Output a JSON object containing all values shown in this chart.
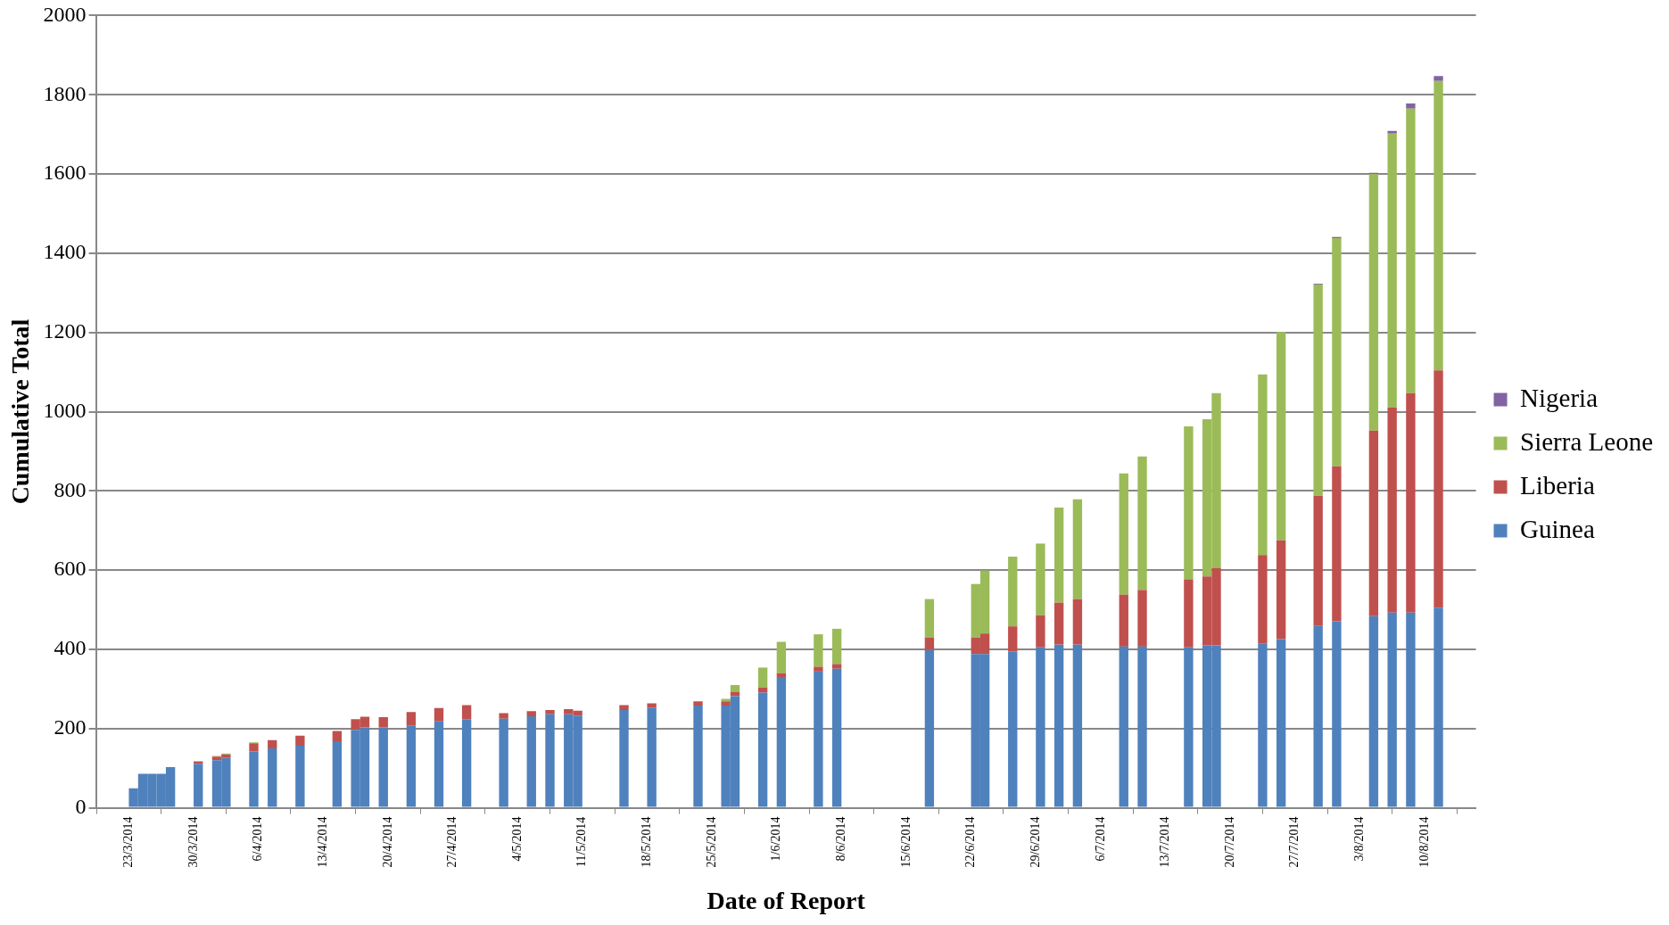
{
  "chart_data": {
    "type": "bar",
    "stacked": true,
    "xlabel": "Date of Report",
    "ylabel": "Cumulative Total",
    "x": [
      "2014-03-23",
      "2014-03-24",
      "2014-03-25",
      "2014-03-26",
      "2014-03-27",
      "2014-03-30",
      "2014-04-01",
      "2014-04-02",
      "2014-04-05",
      "2014-04-07",
      "2014-04-10",
      "2014-04-14",
      "2014-04-16",
      "2014-04-17",
      "2014-04-19",
      "2014-04-22",
      "2014-04-25",
      "2014-04-28",
      "2014-05-02",
      "2014-05-05",
      "2014-05-07",
      "2014-05-09",
      "2014-05-10",
      "2014-05-15",
      "2014-05-18",
      "2014-05-23",
      "2014-05-26",
      "2014-05-27",
      "2014-05-30",
      "2014-06-01",
      "2014-06-05",
      "2014-06-07",
      "2014-06-17",
      "2014-06-22",
      "2014-06-23",
      "2014-06-26",
      "2014-06-29",
      "2014-07-01",
      "2014-07-03",
      "2014-07-08",
      "2014-07-10",
      "2014-07-15",
      "2014-07-17",
      "2014-07-18",
      "2014-07-23",
      "2014-07-25",
      "2014-07-29",
      "2014-07-31",
      "2014-08-04",
      "2014-08-06",
      "2014-08-08",
      "2014-08-11"
    ],
    "series": [
      {
        "name": "Guinea",
        "color": "#4f81bd",
        "values": [
          49,
          86,
          86,
          86,
          103,
          111,
          120,
          126,
          142,
          150,
          157,
          168,
          197,
          203,
          203,
          208,
          218,
          224,
          225,
          231,
          236,
          236,
          233,
          247,
          253,
          258,
          258,
          282,
          291,
          328,
          344,
          351,
          398,
          388,
          388,
          395,
          405,
          412,
          412,
          407,
          407,
          405,
          410,
          410,
          414,
          426,
          459,
          471,
          484,
          493,
          493,
          505
        ]
      },
      {
        "name": "Liberia",
        "color": "#c0504d",
        "values": [
          null,
          null,
          null,
          null,
          null,
          5,
          9,
          9,
          21,
          21,
          25,
          26,
          27,
          27,
          26,
          34,
          34,
          35,
          14,
          13,
          11,
          13,
          12,
          12,
          11,
          11,
          11,
          11,
          12,
          12,
          12,
          12,
          32,
          42,
          52,
          63,
          81,
          106,
          115,
          131,
          143,
          172,
          174,
          195,
          224,
          249,
          329,
          391,
          468,
          517,
          554,
          599
        ]
      },
      {
        "name": "Sierra Leone",
        "color": "#9bbb59",
        "values": [
          null,
          null,
          null,
          null,
          null,
          2,
          2,
          2,
          2,
          null,
          null,
          null,
          null,
          null,
          null,
          null,
          null,
          null,
          null,
          null,
          null,
          null,
          null,
          null,
          null,
          null,
          6,
          17,
          51,
          79,
          82,
          89,
          97,
          135,
          159,
          176,
          181,
          240,
          252,
          306,
          337,
          386,
          397,
          442,
          456,
          526,
          533,
          576,
          648,
          692,
          718,
          731
        ]
      },
      {
        "name": "Nigeria",
        "color": "#8064a2",
        "values": [
          null,
          null,
          null,
          null,
          null,
          null,
          null,
          null,
          null,
          null,
          null,
          null,
          null,
          null,
          null,
          null,
          null,
          null,
          null,
          null,
          null,
          null,
          null,
          null,
          null,
          null,
          null,
          null,
          null,
          null,
          null,
          null,
          null,
          null,
          null,
          null,
          null,
          null,
          null,
          null,
          null,
          null,
          null,
          null,
          null,
          null,
          2,
          3,
          3,
          7,
          13,
          12
        ]
      }
    ],
    "xlim": [
      "2014-03-23",
      "2014-08-12"
    ],
    "xticks": [
      {
        "value": "2014-03-23",
        "label": "23/3/2014"
      },
      {
        "value": "2014-03-30",
        "label": "30/3/2014"
      },
      {
        "value": "2014-04-06",
        "label": "6/4/2014"
      },
      {
        "value": "2014-04-13",
        "label": "13/4/2014"
      },
      {
        "value": "2014-04-20",
        "label": "20/4/2014"
      },
      {
        "value": "2014-04-27",
        "label": "27/4/2014"
      },
      {
        "value": "2014-05-04",
        "label": "4/5/2014"
      },
      {
        "value": "2014-05-11",
        "label": "11/5/2014"
      },
      {
        "value": "2014-05-18",
        "label": "18/5/2014"
      },
      {
        "value": "2014-05-25",
        "label": "25/5/2014"
      },
      {
        "value": "2014-06-01",
        "label": "1/6/2014"
      },
      {
        "value": "2014-06-08",
        "label": "8/6/2014"
      },
      {
        "value": "2014-06-15",
        "label": "15/6/2014"
      },
      {
        "value": "2014-06-22",
        "label": "22/6/2014"
      },
      {
        "value": "2014-06-29",
        "label": "29/6/2014"
      },
      {
        "value": "2014-07-06",
        "label": "6/7/2014"
      },
      {
        "value": "2014-07-13",
        "label": "13/7/2014"
      },
      {
        "value": "2014-07-20",
        "label": "20/7/2014"
      },
      {
        "value": "2014-07-27",
        "label": "27/7/2014"
      },
      {
        "value": "2014-08-03",
        "label": "3/8/2014"
      },
      {
        "value": "2014-08-10",
        "label": "10/8/2014"
      }
    ],
    "ylim": [
      0,
      2000
    ],
    "yticks": [
      0,
      200,
      400,
      600,
      800,
      1000,
      1200,
      1400,
      1600,
      1800,
      2000
    ],
    "grid": "y",
    "legend": "right"
  }
}
